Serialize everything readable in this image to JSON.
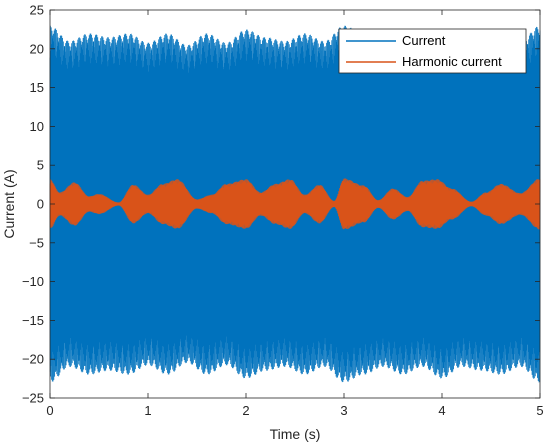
{
  "chart_data": {
    "type": "line",
    "xlabel": "Time (s)",
    "ylabel": "Current (A)",
    "xlim": [
      0,
      5
    ],
    "ylim": [
      -25,
      25
    ],
    "xticks": [
      0,
      1,
      2,
      3,
      4,
      5
    ],
    "yticks": [
      -25,
      -20,
      -15,
      -10,
      -5,
      0,
      5,
      10,
      15,
      20,
      25
    ],
    "grid": false,
    "legend_position": "top-right",
    "series": [
      {
        "name": "Current",
        "color": "#0072BD",
        "style": "dense oscillation",
        "envelope_time": [
          0,
          0.2,
          0.4,
          0.6,
          0.8,
          1.0,
          1.2,
          1.4,
          1.6,
          1.8,
          2.0,
          2.2,
          2.4,
          2.6,
          2.8,
          3.0,
          3.2,
          3.4,
          3.6,
          3.8,
          4.0,
          4.2,
          4.4,
          4.6,
          4.8,
          5.0
        ],
        "envelope_amplitude": [
          23,
          21,
          22,
          21.5,
          22,
          20.8,
          22,
          20.5,
          22,
          20.8,
          22.5,
          21.5,
          21,
          22,
          21,
          23,
          22,
          21,
          22,
          21,
          22.5,
          21,
          21.5,
          22,
          21,
          23
        ]
      },
      {
        "name": "Harmonic current",
        "color": "#D95319",
        "style": "dense oscillation",
        "envelope_time": [
          0,
          0.1,
          0.25,
          0.4,
          0.5,
          0.7,
          0.85,
          1.0,
          1.15,
          1.3,
          1.5,
          1.65,
          1.8,
          2.0,
          2.15,
          2.3,
          2.45,
          2.6,
          2.75,
          2.9,
          3.0,
          3.2,
          3.35,
          3.5,
          3.65,
          3.8,
          3.95,
          4.1,
          4.3,
          4.45,
          4.6,
          4.8,
          5.0
        ],
        "envelope_amplitude": [
          3.2,
          1.5,
          2.8,
          1.0,
          1.3,
          0.2,
          2.5,
          1.2,
          2.6,
          3.2,
          0.6,
          1.2,
          2.6,
          3.2,
          1.5,
          2.6,
          3.2,
          1.2,
          2.5,
          0.4,
          3.3,
          2.4,
          0.5,
          2.0,
          0.9,
          3.0,
          3.2,
          2.0,
          0.3,
          1.5,
          2.6,
          1.4,
          3.3
        ]
      }
    ]
  }
}
